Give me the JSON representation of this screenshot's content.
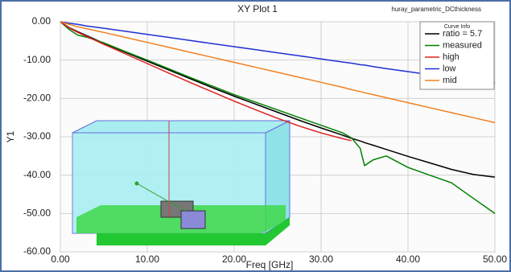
{
  "chart_data": {
    "type": "line",
    "title": "XY Plot 1",
    "subtitle": "huray_parametric_DCthickness",
    "x_label": "Freq [GHz]",
    "y_label": "Y1",
    "legend_title": "Curve Info",
    "legend": "upper right",
    "grid": true,
    "x": [
      0,
      1,
      2,
      3,
      5,
      7.5,
      10,
      12.5,
      15,
      17.5,
      20,
      22.5,
      25,
      27.5,
      30,
      32.5,
      33.5,
      34.5,
      35,
      36,
      37.5,
      40,
      42.5,
      45,
      47.5,
      50
    ],
    "series": [
      {
        "name": "ratio = 5.7",
        "color": "#000000",
        "values": [
          0,
          -1.5,
          -2.6,
          -3.6,
          -5.6,
          -8,
          -10.3,
          -12.6,
          -14.9,
          -17.2,
          -19.4,
          -21.5,
          -23.6,
          -25.7,
          -27.7,
          -29.6,
          -30.4,
          -31.1,
          -31.5,
          -32.2,
          -33.3,
          -35.1,
          -36.8,
          -38.5,
          -39.8,
          -40.5
        ]
      },
      {
        "name": "measured",
        "color": "#008000",
        "values": [
          0,
          -2,
          -3.5,
          -4,
          -5.5,
          -7.8,
          -10,
          -12.3,
          -14.6,
          -16.8,
          -19,
          -21,
          -23,
          -25,
          -27,
          -29,
          -30.3,
          -33,
          -37.5,
          -36,
          -35,
          -38,
          -40,
          -42,
          -46,
          -50
        ]
      },
      {
        "name": "high",
        "color": "#e02020",
        "values": [
          0,
          -1.6,
          -2.8,
          -3.8,
          -5.9,
          -8.4,
          -10.9,
          -13.4,
          -15.9,
          -18.3,
          -20.7,
          -23,
          -25.2,
          -27.2,
          -29,
          -30.5,
          -31,
          null,
          null,
          null,
          null,
          null,
          null,
          null,
          null,
          null
        ]
      },
      {
        "name": "low",
        "color": "#2030d0",
        "values": [
          0,
          -0.4,
          -0.7,
          -1.1,
          -1.7,
          -2.5,
          -3.3,
          -4.1,
          -4.9,
          -5.7,
          -6.5,
          -7.3,
          -8.1,
          -8.9,
          -9.7,
          -10.5,
          -10.8,
          -11.2,
          -11.3,
          -11.7,
          -12.2,
          -13,
          -13.8,
          -14.6,
          -15.3,
          -16
        ]
      },
      {
        "name": "mid",
        "color": "#f08020",
        "values": [
          0,
          -0.7,
          -1.3,
          -1.8,
          -2.8,
          -4.1,
          -5.4,
          -6.7,
          -8,
          -9.3,
          -10.6,
          -11.9,
          -13.2,
          -14.5,
          -15.8,
          -17.1,
          -17.7,
          -18.2,
          -18.5,
          -19,
          -19.8,
          -21.1,
          -22.4,
          -23.7,
          -25,
          -26.3
        ]
      }
    ],
    "xlim": [
      0,
      50
    ],
    "ylim": [
      -60,
      0
    ],
    "xticks": [
      {
        "value": 0,
        "label": "0.00"
      },
      {
        "value": 10,
        "label": "10.00"
      },
      {
        "value": 20,
        "label": "20.00"
      },
      {
        "value": 30,
        "label": "30.00"
      },
      {
        "value": 40,
        "label": "40.00"
      },
      {
        "value": 50,
        "label": "50.00"
      }
    ],
    "yticks": [
      {
        "value": 0,
        "label": "0.00"
      },
      {
        "value": -10,
        "label": "-10.00"
      },
      {
        "value": -20,
        "label": "-20.00"
      },
      {
        "value": -30,
        "label": "-30.00"
      },
      {
        "value": -40,
        "label": "-40.00"
      },
      {
        "value": -50,
        "label": "-50.00"
      },
      {
        "value": -60,
        "label": "-60.00"
      }
    ]
  }
}
